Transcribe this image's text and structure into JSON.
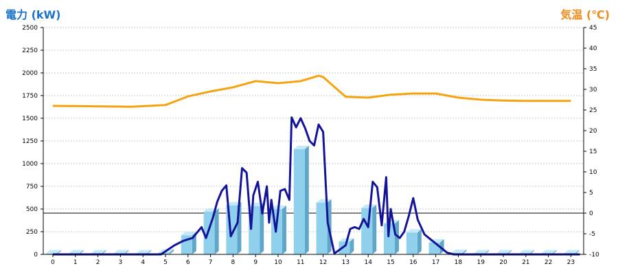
{
  "chart_data": {
    "type": "bar+line",
    "left_title": "電力 (kW)",
    "right_title": "気温 (℃)",
    "colors": {
      "left_title": "#1a73c8",
      "right_title": "#f08a1a",
      "bar_front": "#8fd0ec",
      "bar_side": "#5fa6c8",
      "bar_top": "#c4e9f8",
      "power_line": "#13139a",
      "temp_line": "#f5a30f",
      "grid": "#c8c8c8",
      "axis": "#000000"
    },
    "x_ticks": [
      "0",
      "1",
      "2",
      "3",
      "4",
      "5",
      "6",
      "7",
      "8",
      "9",
      "10",
      "11",
      "12",
      "13",
      "14",
      "15",
      "16",
      "17",
      "18",
      "19",
      "20",
      "21",
      "22",
      "23"
    ],
    "y_left": {
      "min": 0,
      "max": 2500,
      "ticks": [
        "0",
        "250",
        "500",
        "750",
        "1000",
        "1250",
        "1500",
        "1750",
        "2000",
        "2250",
        "2500"
      ]
    },
    "y_right": {
      "min": -10,
      "max": 45,
      "ticks": [
        "-10",
        "-5",
        "0",
        "5",
        "10",
        "15",
        "20",
        "25",
        "30",
        "35",
        "40",
        "45"
      ]
    },
    "bars_hourly_kW": [
      10,
      10,
      10,
      10,
      10,
      20,
      210,
      470,
      540,
      530,
      500,
      1160,
      570,
      140,
      510,
      340,
      240,
      130,
      15,
      10,
      10,
      10,
      10,
      10
    ],
    "power_line_kW": {
      "x": [
        0,
        4.8,
        5.4,
        5.8,
        6.2,
        6.6,
        6.8,
        7.1,
        7.3,
        7.5,
        7.7,
        7.9,
        8.2,
        8.4,
        8.6,
        8.8,
        8.9,
        9.1,
        9.3,
        9.5,
        9.6,
        9.7,
        9.9,
        10.1,
        10.3,
        10.5,
        10.6,
        10.8,
        11.0,
        11.2,
        11.4,
        11.6,
        11.8,
        12.0,
        12.2,
        12.5,
        13.0,
        13.2,
        13.4,
        13.6,
        13.8,
        14.0,
        14.2,
        14.4,
        14.6,
        14.8,
        14.9,
        15.0,
        15.2,
        15.4,
        15.6,
        15.8,
        16.0,
        16.2,
        16.5,
        16.8,
        17.0,
        17.3,
        17.5,
        17.8,
        18.0,
        23.4
      ],
      "y": [
        0,
        0,
        100,
        150,
        180,
        300,
        180,
        400,
        580,
        700,
        760,
        200,
        350,
        950,
        900,
        280,
        650,
        800,
        450,
        750,
        350,
        600,
        250,
        700,
        720,
        600,
        1510,
        1400,
        1500,
        1390,
        1250,
        1200,
        1430,
        1350,
        350,
        10,
        100,
        280,
        300,
        280,
        390,
        300,
        800,
        740,
        320,
        850,
        200,
        500,
        220,
        180,
        250,
        420,
        620,
        380,
        220,
        160,
        120,
        60,
        20,
        0,
        0,
        0
      ]
    },
    "temperature_line_C": {
      "x": [
        0,
        3.5,
        5.0,
        6.0,
        7.0,
        8.0,
        9.0,
        10.0,
        11.0,
        11.8,
        12.0,
        13.0,
        14.0,
        15.0,
        16.0,
        17.0,
        18.0,
        19.0,
        20.0,
        21.0,
        22.0,
        23.0
      ],
      "y": [
        26,
        25.8,
        26.2,
        28.3,
        29.5,
        30.5,
        32.0,
        31.5,
        32.0,
        33.3,
        33.0,
        28.2,
        28.0,
        28.7,
        29.0,
        29.0,
        28.0,
        27.5,
        27.3,
        27.2,
        27.2,
        27.2
      ]
    },
    "grid": true,
    "reference_line_kW": 455
  }
}
